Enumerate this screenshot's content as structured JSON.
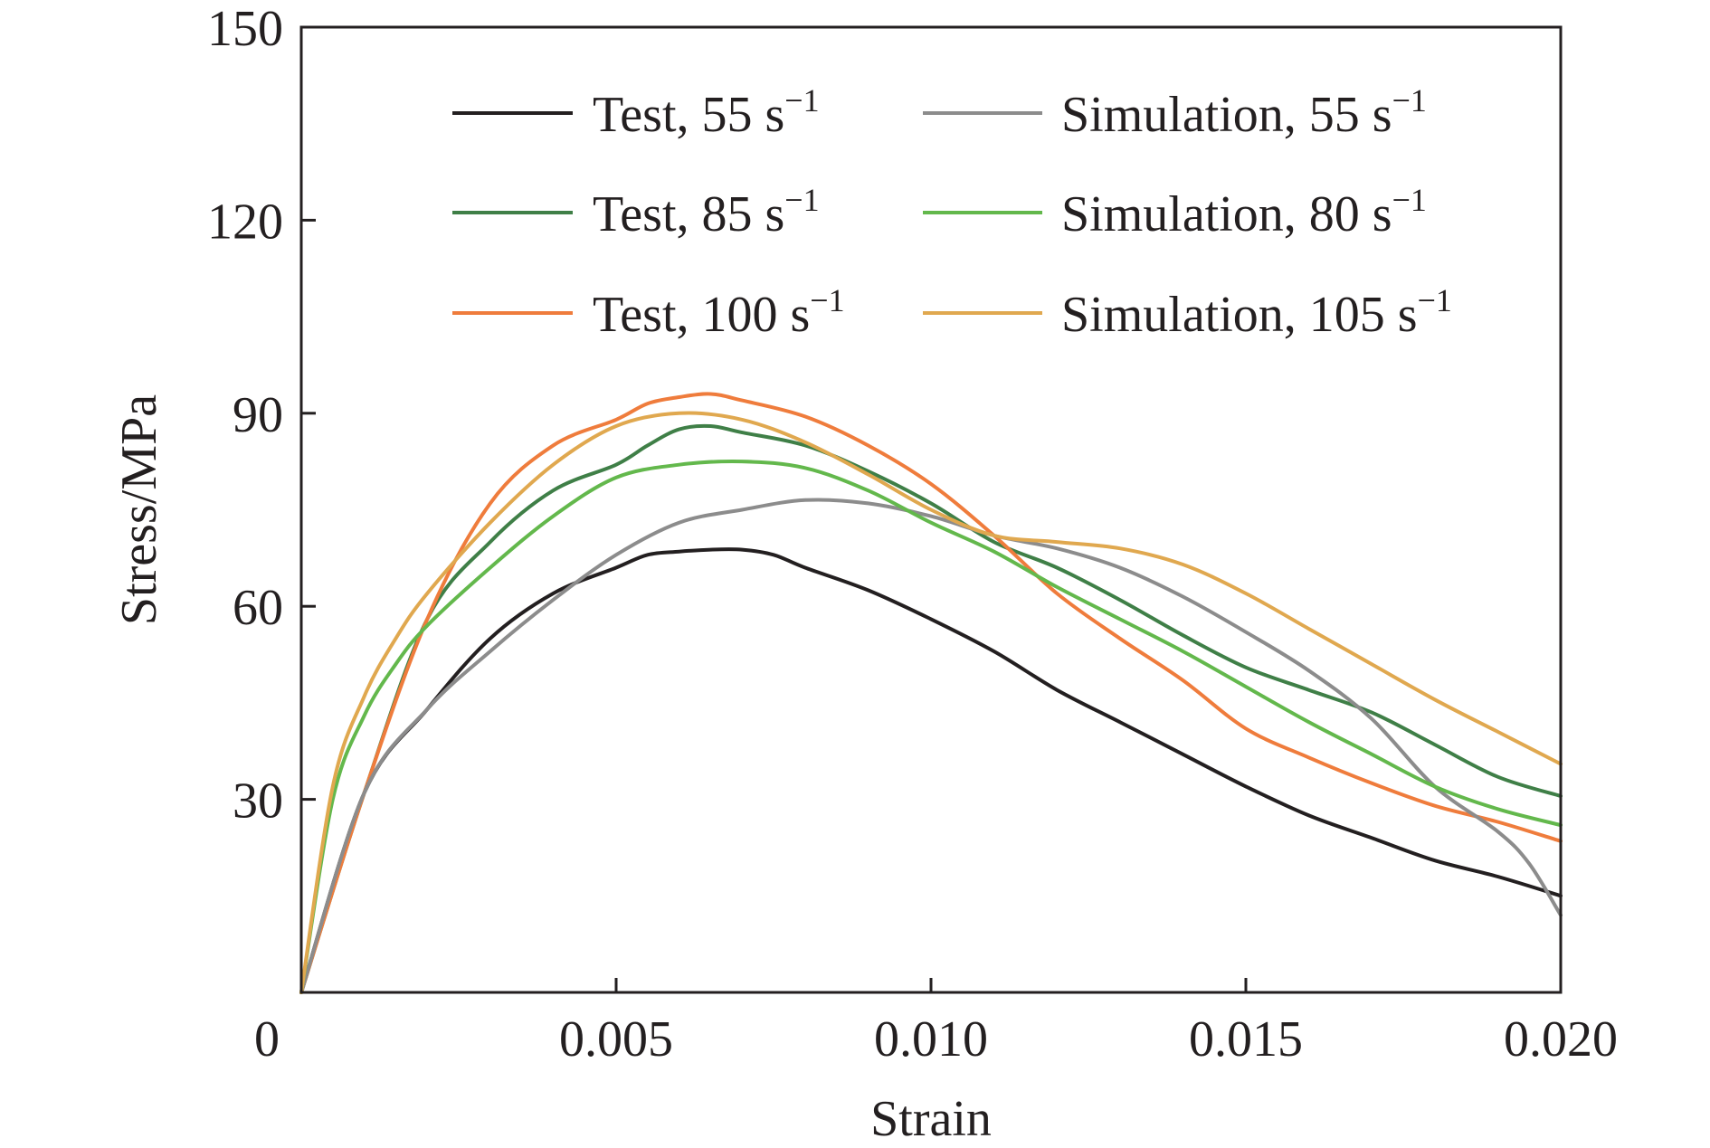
{
  "chart_data": {
    "type": "line",
    "xlabel": "Strain",
    "ylabel": "Stress/MPa",
    "xlim": [
      0,
      0.02
    ],
    "ylim": [
      0,
      150
    ],
    "xticks": [
      0,
      0.005,
      0.01,
      0.015,
      0.02
    ],
    "xtick_labels": [
      "0",
      "0.005",
      "0.010",
      "0.015",
      "0.020"
    ],
    "yticks": [
      30,
      60,
      90,
      120,
      150
    ],
    "ytick_labels": [
      "30",
      "60",
      "90",
      "120",
      "150"
    ],
    "grid": false,
    "legend_position": "top",
    "series": [
      {
        "name": "Test, 55 s",
        "name_sup": "−1",
        "color": "#231f20",
        "x": [
          0,
          0.001,
          0.002,
          0.003,
          0.004,
          0.005,
          0.0055,
          0.006,
          0.0065,
          0.007,
          0.0075,
          0.008,
          0.009,
          0.01,
          0.011,
          0.012,
          0.013,
          0.014,
          0.015,
          0.016,
          0.017,
          0.018,
          0.019,
          0.02
        ],
        "y": [
          0,
          31,
          44,
          55,
          62,
          66,
          68,
          68.5,
          68.8,
          68.8,
          68,
          66,
          62.5,
          58,
          53,
          47,
          42,
          37,
          32,
          27.5,
          24,
          20.5,
          18,
          15
        ]
      },
      {
        "name": "Test, 85 s",
        "name_sup": "−1",
        "color": "#3f7f47",
        "x": [
          0,
          0.001,
          0.002,
          0.003,
          0.004,
          0.005,
          0.0055,
          0.006,
          0.0065,
          0.007,
          0.008,
          0.009,
          0.01,
          0.011,
          0.012,
          0.013,
          0.014,
          0.015,
          0.016,
          0.017,
          0.018,
          0.019,
          0.02
        ],
        "y": [
          0,
          31,
          58,
          70,
          78,
          82,
          85,
          87.5,
          88,
          87,
          85,
          81,
          76,
          70,
          66,
          61,
          55.5,
          50.5,
          47,
          43.5,
          38.5,
          33.5,
          30.5
        ]
      },
      {
        "name": "Test, 100 s",
        "name_sup": "−1",
        "color": "#ef7c3c",
        "x": [
          0,
          0.001,
          0.002,
          0.003,
          0.004,
          0.005,
          0.0055,
          0.006,
          0.0065,
          0.007,
          0.008,
          0.009,
          0.01,
          0.011,
          0.012,
          0.013,
          0.014,
          0.015,
          0.016,
          0.017,
          0.018,
          0.019,
          0.02
        ],
        "y": [
          0,
          31,
          58,
          76,
          85,
          89,
          91.5,
          92.5,
          93,
          92,
          89.5,
          85,
          79,
          71,
          62,
          55,
          48.5,
          41,
          36.5,
          32.5,
          29,
          26.5,
          23.5
        ]
      },
      {
        "name": "Simulation, 55 s",
        "name_sup": "−1",
        "color": "#8c8c8c",
        "x": [
          0,
          0.001,
          0.002,
          0.003,
          0.004,
          0.005,
          0.006,
          0.007,
          0.008,
          0.009,
          0.01,
          0.011,
          0.012,
          0.013,
          0.014,
          0.015,
          0.016,
          0.017,
          0.018,
          0.019,
          0.0195,
          0.02
        ],
        "y": [
          0,
          31,
          44,
          53,
          61,
          68,
          73,
          75,
          76.5,
          76,
          74,
          71,
          69,
          66,
          61.5,
          56,
          50,
          42.5,
          32,
          25,
          20,
          12
        ]
      },
      {
        "name": "Simulation, 80 s",
        "name_sup": "−1",
        "color": "#63b84c",
        "x": [
          0,
          0.0005,
          0.001,
          0.0015,
          0.002,
          0.003,
          0.004,
          0.005,
          0.006,
          0.007,
          0.008,
          0.009,
          0.01,
          0.011,
          0.012,
          0.013,
          0.014,
          0.015,
          0.016,
          0.017,
          0.018,
          0.019,
          0.02
        ],
        "y": [
          0,
          30,
          43,
          51,
          57,
          66,
          74,
          80,
          82,
          82.5,
          81.5,
          78,
          73,
          68.5,
          63,
          58,
          53,
          47.5,
          42,
          37,
          32,
          28.5,
          26
        ]
      },
      {
        "name": "Simulation, 105 s",
        "name_sup": "−1",
        "color": "#e0a84f",
        "x": [
          0,
          0.0005,
          0.001,
          0.0015,
          0.002,
          0.003,
          0.004,
          0.005,
          0.006,
          0.007,
          0.008,
          0.009,
          0.01,
          0.011,
          0.012,
          0.013,
          0.014,
          0.015,
          0.016,
          0.017,
          0.018,
          0.019,
          0.02
        ],
        "y": [
          0,
          32,
          46,
          55,
          62,
          73,
          82,
          88,
          90,
          89,
          85.5,
          80.5,
          75,
          71,
          70,
          69,
          66.5,
          62,
          56.5,
          51,
          45.5,
          40.5,
          35.5
        ]
      }
    ]
  }
}
